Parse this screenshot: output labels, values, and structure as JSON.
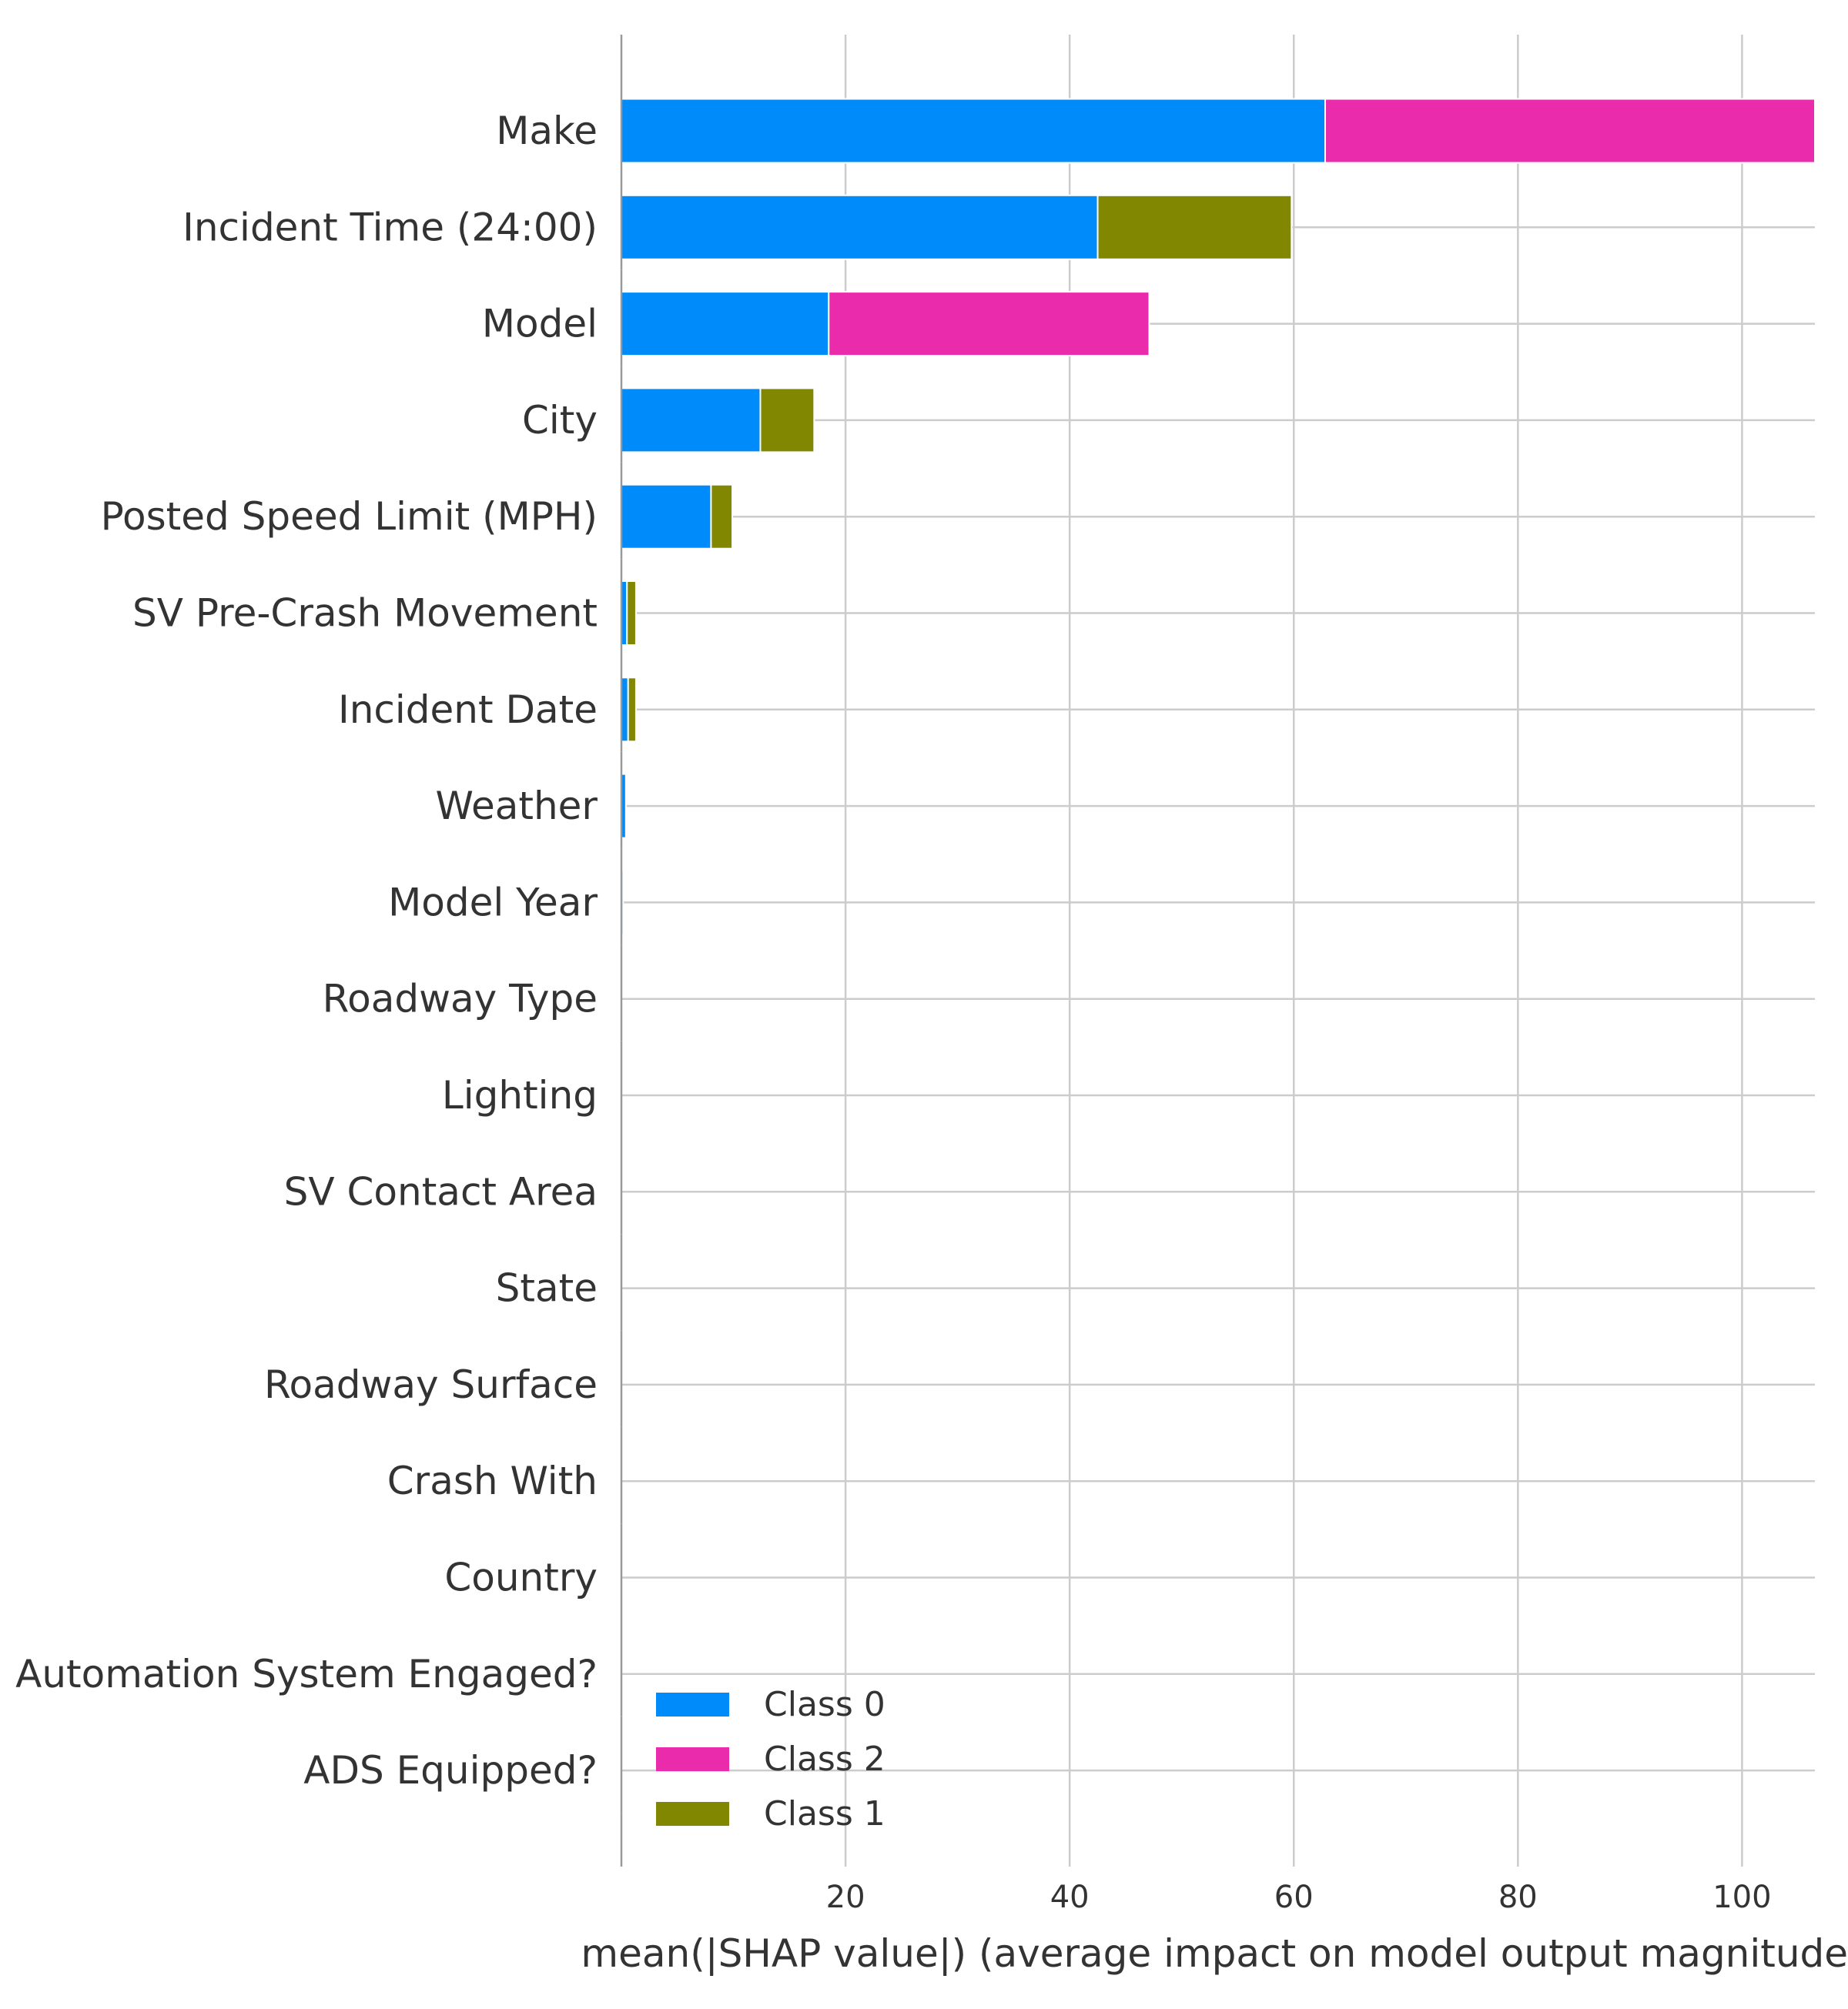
{
  "colors": {
    "Class 0": "#008bfb",
    "Class 2": "#ea2bab",
    "Class 1": "#818700",
    "grid": "#cccccc",
    "axis": "#999999",
    "text": "#333333"
  },
  "chart_data": {
    "type": "bar",
    "orientation": "horizontal",
    "stacked": true,
    "xlabel": "mean(|SHAP value|) (average impact on model output magnitude)",
    "xlim": [
      0,
      106.5
    ],
    "xticks": [
      20,
      40,
      60,
      80,
      100
    ],
    "grid": true,
    "legend_position": "bottom-left",
    "categories": [
      "Make",
      "Incident Time (24:00)",
      "Model",
      "City",
      "Posted Speed Limit (MPH)",
      "SV Pre-Crash Movement",
      "Incident Date",
      "Weather",
      "Model Year",
      "Roadway Type",
      "Lighting",
      "SV Contact Area",
      "State",
      "Roadway Surface",
      "Crash With",
      "Country",
      "Automation System Engaged?",
      "ADS Equipped?"
    ],
    "series": [
      {
        "name": "Class 0",
        "values": [
          62.8,
          42.5,
          18.5,
          12.4,
          8.0,
          0.5,
          0.6,
          0.4,
          0.15,
          0,
          0,
          0,
          0,
          0,
          0,
          0,
          0,
          0
        ]
      },
      {
        "name": "Class 2",
        "values": [
          43.7,
          0,
          28.6,
          0,
          0,
          0,
          0,
          0,
          0,
          0,
          0,
          0,
          0,
          0,
          0,
          0,
          0,
          0
        ]
      },
      {
        "name": "Class 1",
        "values": [
          0,
          17.3,
          0,
          4.8,
          1.9,
          0.8,
          0.7,
          0,
          0,
          0,
          0,
          0,
          0,
          0,
          0,
          0,
          0,
          0
        ]
      }
    ]
  }
}
